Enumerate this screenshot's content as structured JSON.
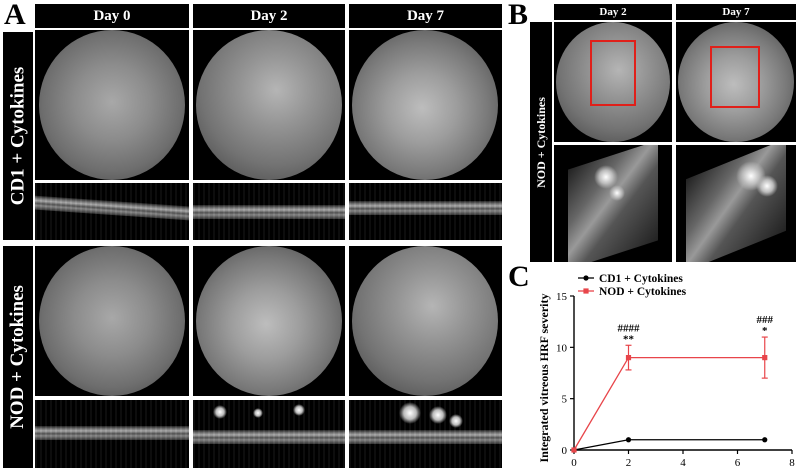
{
  "panel_a": {
    "letter": "A",
    "columns": [
      "Day 0",
      "Day 2",
      "Day 7"
    ],
    "rows": [
      "CD1 + Cytokines",
      "NOD + Cytokines"
    ]
  },
  "panel_b": {
    "letter": "B",
    "columns": [
      "Day 2",
      "Day 7"
    ],
    "row": "NOD + Cytokines"
  },
  "panel_c": {
    "letter": "C",
    "chart_data": {
      "type": "line",
      "ylabel": "Integrated vitreous HRF severity",
      "xlim": [
        0,
        8
      ],
      "ylim": [
        0,
        15
      ],
      "xticks": [
        0,
        2,
        4,
        6,
        8
      ],
      "yticks": [
        0,
        5,
        10,
        15
      ],
      "legend_position": "top-left",
      "series": [
        {
          "name": "CD1 + Cytokines",
          "color": "#000000",
          "marker": "circle",
          "x": [
            0,
            2,
            7
          ],
          "y": [
            0,
            1,
            1
          ],
          "err": [
            0,
            0,
            0
          ]
        },
        {
          "name": "NOD + Cytokines",
          "color": "#e8454a",
          "marker": "square",
          "x": [
            0,
            2,
            7
          ],
          "y": [
            0,
            9,
            9
          ],
          "err": [
            0,
            1.2,
            2
          ]
        }
      ],
      "annotations": [
        {
          "x": 2,
          "lines": [
            "####",
            "**"
          ]
        },
        {
          "x": 7,
          "lines": [
            "###",
            "*"
          ]
        }
      ]
    }
  }
}
